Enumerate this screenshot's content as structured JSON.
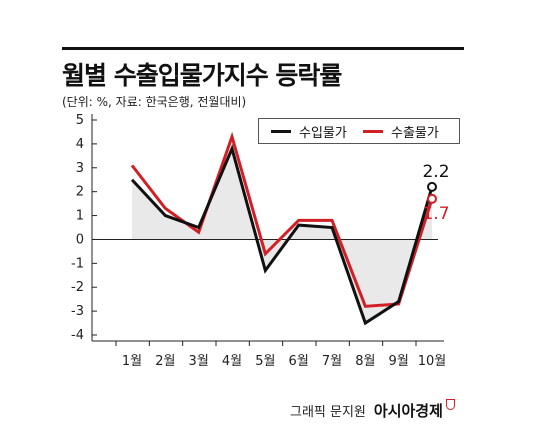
{
  "header": {
    "title": "월별 수출입물가지수 등락률",
    "subtitle": "(단위: %, 자료: 한국은행, 전월대비)"
  },
  "credit": {
    "label": "그래픽 문지원",
    "brand": "아시아경제"
  },
  "colors": {
    "import": "#111111",
    "export": "#d21f26",
    "fill": "#e9e9e9",
    "axis": "#222222"
  },
  "chart_data": {
    "type": "line",
    "title": "월별 수출입물가지수 등락률",
    "subtitle": "(단위: %, 자료: 한국은행, 전월대비)",
    "categories": [
      "1월",
      "2월",
      "3월",
      "4월",
      "5월",
      "6월",
      "7월",
      "8월",
      "9월",
      "10월"
    ],
    "series": [
      {
        "name": "수입물가",
        "values": [
          2.5,
          1.0,
          0.5,
          3.8,
          -1.3,
          0.6,
          0.5,
          -3.5,
          -2.6,
          2.2
        ],
        "color": "#111111"
      },
      {
        "name": "수출물가",
        "values": [
          3.1,
          1.3,
          0.3,
          4.3,
          -0.6,
          0.8,
          0.8,
          -2.8,
          -2.7,
          1.7
        ],
        "color": "#d21f26"
      }
    ],
    "ylim": [
      -4,
      5
    ],
    "yticks": [
      "5",
      "4",
      "3",
      "2",
      "1",
      "0",
      "-1",
      "-2",
      "-3",
      "-4"
    ],
    "data_labels": [
      {
        "series": "수입물가",
        "index": 9,
        "text": "2.2"
      },
      {
        "series": "수출물가",
        "index": 9,
        "text": "1.7"
      }
    ],
    "legend": "top-right",
    "grid": false
  }
}
